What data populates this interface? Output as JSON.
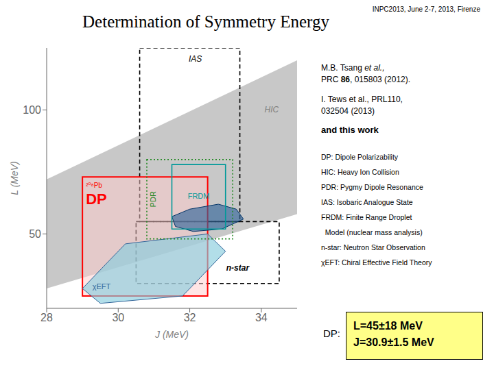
{
  "chart_data": {
    "type": "region",
    "title": "Determination of Symmetry Energy",
    "subtitle": "INPC2013, June 2-7, 2013, Firenze",
    "xlabel": "J  (MeV)",
    "ylabel": "L  (MeV)",
    "xlim": [
      28,
      35
    ],
    "ylim": [
      20,
      125
    ],
    "xticks": [
      28,
      30,
      32,
      34
    ],
    "yticks": [
      50,
      100
    ],
    "regions": [
      {
        "name": "HIC",
        "type": "band",
        "x": [
          28,
          35
        ],
        "y_low": [
          28,
          58
        ],
        "y_high": [
          72,
          120
        ],
        "color": "#aaaaaa"
      },
      {
        "name": "IAS",
        "type": "box",
        "x0": 30.6,
        "y0": 55,
        "x1": 33.4,
        "y1": 125,
        "color": "black",
        "line_style": "dashed"
      },
      {
        "name": "n-star",
        "type": "box",
        "x0": 30.5,
        "y0": 30,
        "x1": 34.5,
        "y1": 55,
        "color": "black",
        "line_style": "dashed"
      },
      {
        "name": "DP",
        "annotation": "²⁰⁸Pb",
        "type": "box",
        "x0": 29.0,
        "y0": 25,
        "x1": 32.5,
        "y1": 73,
        "color": "red",
        "fill": "#ffcccc",
        "line_style": "solid"
      },
      {
        "name": "χEFT",
        "type": "polygon",
        "xs": [
          29.0,
          29.5,
          31.8,
          33.0,
          32.5,
          30.2
        ],
        "ys": [
          28,
          22,
          25,
          43,
          50,
          46
        ],
        "color": "#336699",
        "fill": "#88ccdd",
        "line_style": "solid"
      },
      {
        "type": "polygon",
        "xs": [
          31.6,
          32.1,
          32.9,
          33.5,
          33.3,
          32.8,
          32.0,
          31.5
        ],
        "ys": [
          53,
          51,
          52,
          56,
          60,
          62,
          60,
          57
        ],
        "color": "#003366",
        "fill": "#336699",
        "line_style": "solid"
      },
      {
        "name": "PDR",
        "type": "box",
        "x0": 30.8,
        "y0": 48,
        "x1": 33.2,
        "y1": 80,
        "color": "#228822",
        "line_style": "dotted"
      },
      {
        "name": "FRDM",
        "type": "box",
        "x0": 31.5,
        "y0": 52,
        "x1": 33.0,
        "y1": 78,
        "color": "#009999",
        "line_style": "solid"
      }
    ],
    "references": [
      [
        {
          "text": "M.B. Tsang "
        },
        {
          "text": "et al.,",
          "style": "italic"
        }
      ],
      [
        {
          "text": "PRC "
        },
        {
          "text": "86",
          "style": "bold"
        },
        {
          "text": ", 015803 (2012)."
        }
      ],
      [
        {
          "text": "I. Tews et al., PRL110,"
        }
      ],
      [
        {
          "text": "032504 (2013)"
        }
      ],
      [
        {
          "text": "and this work",
          "style": "bold"
        }
      ]
    ],
    "legend_text": [
      "DP: Dipole Polarizability",
      "HIC: Heavy Ion Collision",
      "PDR: Pygmy Dipole Resonance",
      "IAS: Isobaric Analogue State",
      "FRDM: Finite Range Droplet",
      "  Model (nuclear mass analysis)",
      "n-star: Neutron Star Observation",
      "χEFT: Chiral Effective Field Theory"
    ],
    "result_label": "DP:",
    "result": [
      "L=45±18 MeV",
      "J=30.9±1.5 MeV"
    ]
  }
}
